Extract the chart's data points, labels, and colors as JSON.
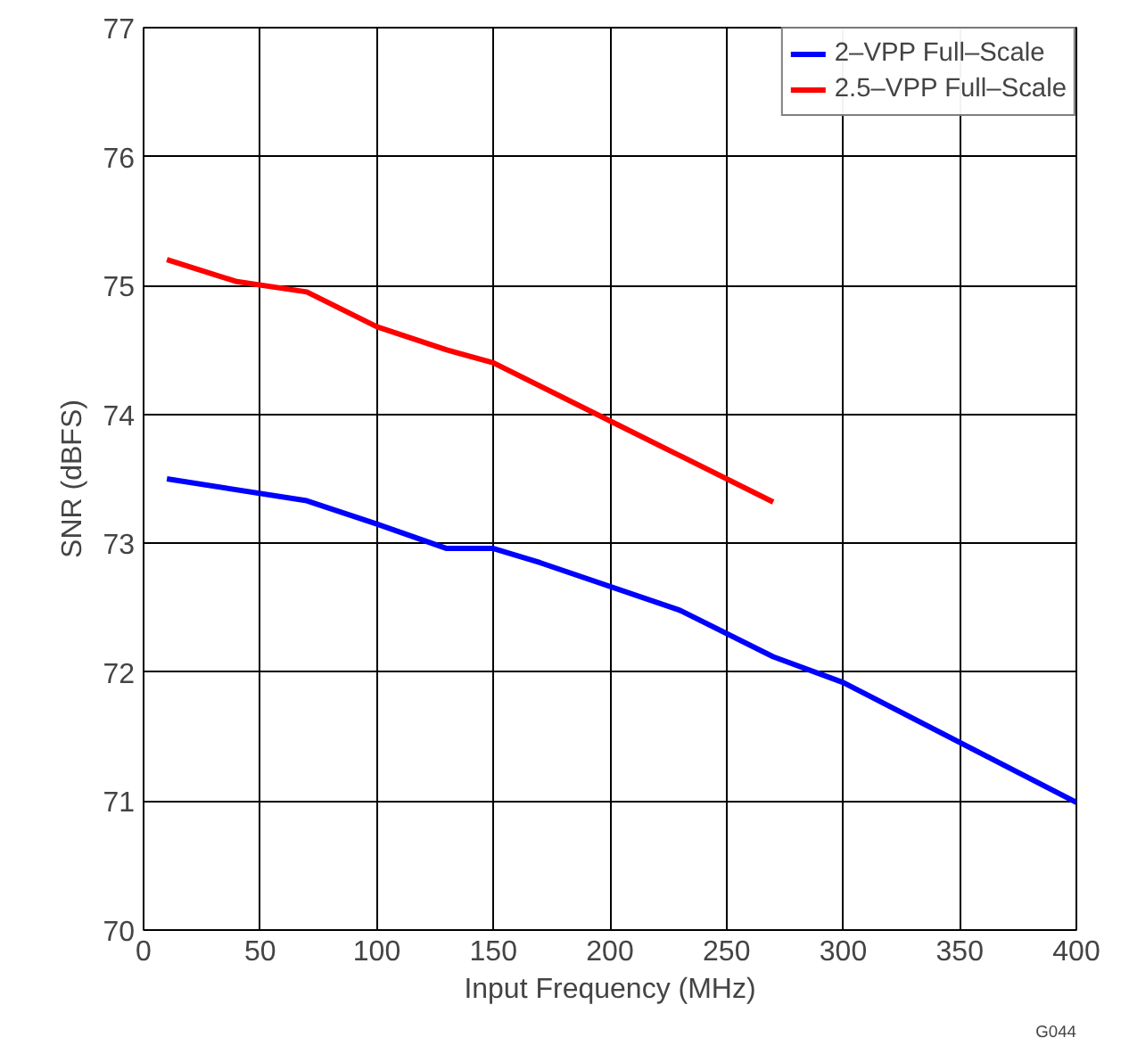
{
  "chart_data": {
    "type": "line",
    "xlabel": "Input Frequency (MHz)",
    "ylabel": "SNR (dBFS)",
    "xlim": [
      0,
      400
    ],
    "ylim": [
      70,
      77
    ],
    "xticks": [
      0,
      50,
      100,
      150,
      200,
      250,
      300,
      350,
      400
    ],
    "yticks": [
      70,
      71,
      72,
      73,
      74,
      75,
      76,
      77
    ],
    "grid": true,
    "legend": "top right",
    "annotations": [
      "G044"
    ],
    "series": [
      {
        "name": "2–VPP Full–Scale",
        "color": "#0000ff",
        "x": [
          10,
          70,
          100,
          130,
          150,
          170,
          230,
          270,
          300,
          400
        ],
        "values": [
          73.5,
          73.33,
          73.15,
          72.96,
          72.96,
          72.85,
          72.48,
          72.12,
          71.92,
          70.99
        ]
      },
      {
        "name": "2.5–VPP Full–Scale",
        "color": "#ff0000",
        "x": [
          10,
          40,
          70,
          100,
          130,
          150,
          200,
          270
        ],
        "values": [
          75.2,
          75.03,
          74.95,
          74.68,
          74.5,
          74.4,
          73.95,
          73.32
        ]
      }
    ]
  }
}
